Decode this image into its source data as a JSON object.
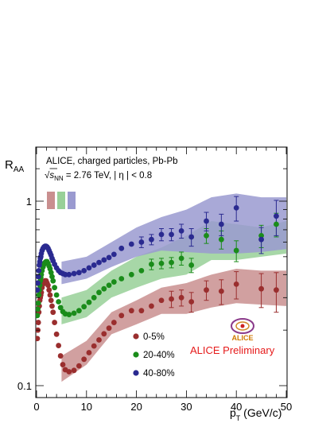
{
  "chart_data": {
    "type": "scatter",
    "title": "",
    "xlabel": "p_T (GeV/c)",
    "xlabel_parts": {
      "main": "p",
      "sub": "T",
      "unit": " (GeV/c)"
    },
    "ylabel": "R_AA",
    "ylabel_parts": {
      "main": "R",
      "sub": "AA"
    },
    "xlim": [
      0,
      50
    ],
    "ylim": [
      0.1,
      1.5
    ],
    "yscale": "log",
    "xticks": [
      "0",
      "10",
      "20",
      "30",
      "40",
      "50"
    ],
    "yticks": [
      "0.1",
      "1"
    ],
    "legend_placement": "bottom-center",
    "annotations": {
      "line1": "ALICE, charged particles, Pb-Pb",
      "energy_prefix": "√",
      "energy_s": "s",
      "energy_sub": "NN",
      "energy_value": " = 2.76 TeV, | η | < 0.8",
      "preliminary": "ALICE Preliminary",
      "logo_text": "ALICE"
    },
    "norm_boxes": [
      {
        "color": "#c98f8f",
        "y": 1.0
      },
      {
        "color": "#98d098",
        "y": 1.0
      },
      {
        "color": "#9a9ad0",
        "y": 1.0
      }
    ],
    "series": [
      {
        "name": "0-5%",
        "color": "#9a2e2e",
        "band_color": "#c98f8f",
        "points": [
          [
            0.15,
            0.18
          ],
          [
            0.25,
            0.2
          ],
          [
            0.35,
            0.22
          ],
          [
            0.45,
            0.25
          ],
          [
            0.55,
            0.27
          ],
          [
            0.65,
            0.29
          ],
          [
            0.75,
            0.3
          ],
          [
            0.85,
            0.31
          ],
          [
            0.95,
            0.32
          ],
          [
            1.1,
            0.34
          ],
          [
            1.3,
            0.355
          ],
          [
            1.5,
            0.365
          ],
          [
            1.7,
            0.37
          ],
          [
            1.9,
            0.37
          ],
          [
            2.1,
            0.36
          ],
          [
            2.3,
            0.35
          ],
          [
            2.5,
            0.33
          ],
          [
            2.7,
            0.31
          ],
          [
            2.9,
            0.29
          ],
          [
            3.1,
            0.27
          ],
          [
            3.3,
            0.25
          ],
          [
            3.6,
            0.22
          ],
          [
            4.0,
            0.19
          ],
          [
            4.4,
            0.165
          ],
          [
            4.8,
            0.145
          ],
          [
            5.25,
            0.13
          ],
          [
            5.75,
            0.122
          ],
          [
            6.5,
            0.119
          ],
          [
            7.5,
            0.121
          ],
          [
            8.5,
            0.128
          ],
          [
            9.5,
            0.139
          ],
          [
            10.5,
            0.151
          ],
          [
            11.5,
            0.164
          ],
          [
            12.5,
            0.177
          ],
          [
            13.5,
            0.191
          ],
          [
            14.5,
            0.205
          ],
          [
            15.5,
            0.22
          ],
          [
            17,
            0.24
          ],
          [
            19,
            0.255
          ],
          [
            21,
            0.255
          ],
          [
            23,
            0.27
          ],
          [
            25,
            0.29
          ],
          [
            27,
            0.295
          ],
          [
            29,
            0.3
          ],
          [
            31,
            0.285
          ],
          [
            34,
            0.33
          ],
          [
            37,
            0.325
          ],
          [
            40,
            0.355
          ],
          [
            45,
            0.335
          ],
          [
            48,
            0.33
          ]
        ],
        "errors": [
          [
            27,
            0.03
          ],
          [
            29,
            0.03
          ],
          [
            31,
            0.035
          ],
          [
            34,
            0.04
          ],
          [
            37,
            0.05
          ],
          [
            40,
            0.06
          ],
          [
            45,
            0.07
          ],
          [
            48,
            0.08
          ]
        ],
        "bands": [
          [
            5,
            0.105,
            0.145
          ],
          [
            10,
            0.13,
            0.175
          ],
          [
            15,
            0.19,
            0.25
          ],
          [
            20,
            0.215,
            0.29
          ],
          [
            25,
            0.245,
            0.34
          ],
          [
            30,
            0.245,
            0.36
          ],
          [
            35,
            0.265,
            0.4
          ],
          [
            40,
            0.28,
            0.43
          ],
          [
            45,
            0.275,
            0.42
          ],
          [
            50,
            0.27,
            0.42
          ]
        ]
      },
      {
        "name": "20-40%",
        "color": "#1a8c1a",
        "band_color": "#98d098",
        "points": [
          [
            0.15,
            0.24
          ],
          [
            0.25,
            0.26
          ],
          [
            0.35,
            0.28
          ],
          [
            0.45,
            0.31
          ],
          [
            0.55,
            0.33
          ],
          [
            0.65,
            0.35
          ],
          [
            0.75,
            0.37
          ],
          [
            0.85,
            0.385
          ],
          [
            0.95,
            0.4
          ],
          [
            1.1,
            0.42
          ],
          [
            1.3,
            0.44
          ],
          [
            1.5,
            0.455
          ],
          [
            1.7,
            0.465
          ],
          [
            1.9,
            0.47
          ],
          [
            2.1,
            0.47
          ],
          [
            2.3,
            0.46
          ],
          [
            2.5,
            0.445
          ],
          [
            2.7,
            0.43
          ],
          [
            2.9,
            0.41
          ],
          [
            3.1,
            0.39
          ],
          [
            3.3,
            0.37
          ],
          [
            3.6,
            0.34
          ],
          [
            4.0,
            0.31
          ],
          [
            4.4,
            0.285
          ],
          [
            4.8,
            0.265
          ],
          [
            5.25,
            0.252
          ],
          [
            5.75,
            0.245
          ],
          [
            6.5,
            0.243
          ],
          [
            7.5,
            0.247
          ],
          [
            8.5,
            0.255
          ],
          [
            9.5,
            0.268
          ],
          [
            10.5,
            0.283
          ],
          [
            11.5,
            0.3
          ],
          [
            12.5,
            0.32
          ],
          [
            13.5,
            0.335
          ],
          [
            14.5,
            0.35
          ],
          [
            15.5,
            0.365
          ],
          [
            17,
            0.38
          ],
          [
            19,
            0.4
          ],
          [
            21,
            0.42
          ],
          [
            23,
            0.455
          ],
          [
            25,
            0.46
          ],
          [
            27,
            0.465
          ],
          [
            29,
            0.49
          ],
          [
            31,
            0.45
          ],
          [
            34,
            0.65
          ],
          [
            37,
            0.62
          ],
          [
            40,
            0.54
          ],
          [
            45,
            0.65
          ],
          [
            48,
            0.75
          ]
        ],
        "errors": [
          [
            23,
            0.03
          ],
          [
            25,
            0.03
          ],
          [
            27,
            0.03
          ],
          [
            29,
            0.04
          ],
          [
            31,
            0.04
          ],
          [
            34,
            0.06
          ],
          [
            37,
            0.07
          ],
          [
            40,
            0.07
          ],
          [
            45,
            0.09
          ],
          [
            48,
            0.11
          ]
        ],
        "bands": [
          [
            5,
            0.215,
            0.3
          ],
          [
            10,
            0.235,
            0.33
          ],
          [
            15,
            0.3,
            0.42
          ],
          [
            20,
            0.34,
            0.5
          ],
          [
            25,
            0.38,
            0.56
          ],
          [
            30,
            0.4,
            0.65
          ],
          [
            35,
            0.48,
            0.78
          ],
          [
            40,
            0.48,
            0.75
          ],
          [
            45,
            0.5,
            0.72
          ],
          [
            50,
            0.52,
            0.78
          ]
        ]
      },
      {
        "name": "40-80%",
        "color": "#2a2a90",
        "band_color": "#9a9ad0",
        "points": [
          [
            0.15,
            0.33
          ],
          [
            0.25,
            0.36
          ],
          [
            0.35,
            0.39
          ],
          [
            0.45,
            0.42
          ],
          [
            0.55,
            0.45
          ],
          [
            0.65,
            0.47
          ],
          [
            0.75,
            0.49
          ],
          [
            0.85,
            0.5
          ],
          [
            0.95,
            0.52
          ],
          [
            1.1,
            0.54
          ],
          [
            1.3,
            0.555
          ],
          [
            1.5,
            0.565
          ],
          [
            1.7,
            0.57
          ],
          [
            1.9,
            0.57
          ],
          [
            2.1,
            0.565
          ],
          [
            2.3,
            0.555
          ],
          [
            2.5,
            0.54
          ],
          [
            2.7,
            0.525
          ],
          [
            2.9,
            0.51
          ],
          [
            3.1,
            0.49
          ],
          [
            3.3,
            0.475
          ],
          [
            3.6,
            0.455
          ],
          [
            4.0,
            0.435
          ],
          [
            4.4,
            0.42
          ],
          [
            4.8,
            0.41
          ],
          [
            5.25,
            0.405
          ],
          [
            5.75,
            0.4
          ],
          [
            6.5,
            0.4
          ],
          [
            7.5,
            0.405
          ],
          [
            8.5,
            0.41
          ],
          [
            9.5,
            0.42
          ],
          [
            10.5,
            0.435
          ],
          [
            11.5,
            0.45
          ],
          [
            12.5,
            0.465
          ],
          [
            13.5,
            0.48
          ],
          [
            14.5,
            0.495
          ],
          [
            15.5,
            0.515
          ],
          [
            17,
            0.555
          ],
          [
            19,
            0.585
          ],
          [
            21,
            0.6
          ],
          [
            23,
            0.62
          ],
          [
            25,
            0.66
          ],
          [
            27,
            0.66
          ],
          [
            29,
            0.69
          ],
          [
            31,
            0.64
          ],
          [
            34,
            0.78
          ],
          [
            37,
            0.75
          ],
          [
            40,
            0.92
          ],
          [
            45,
            0.62
          ],
          [
            48,
            0.83
          ]
        ],
        "errors": [
          [
            21,
            0.04
          ],
          [
            23,
            0.04
          ],
          [
            25,
            0.05
          ],
          [
            27,
            0.05
          ],
          [
            29,
            0.06
          ],
          [
            31,
            0.07
          ],
          [
            34,
            0.09
          ],
          [
            37,
            0.1
          ],
          [
            40,
            0.14
          ],
          [
            45,
            0.1
          ],
          [
            48,
            0.18
          ]
        ],
        "bands": [
          [
            5,
            0.355,
            0.47
          ],
          [
            10,
            0.38,
            0.5
          ],
          [
            15,
            0.44,
            0.6
          ],
          [
            20,
            0.5,
            0.72
          ],
          [
            25,
            0.54,
            0.82
          ],
          [
            30,
            0.53,
            0.9
          ],
          [
            35,
            0.52,
            1.05
          ],
          [
            40,
            0.52,
            1.1
          ],
          [
            45,
            0.53,
            1.05
          ],
          [
            50,
            0.55,
            1.05
          ]
        ]
      }
    ]
  }
}
